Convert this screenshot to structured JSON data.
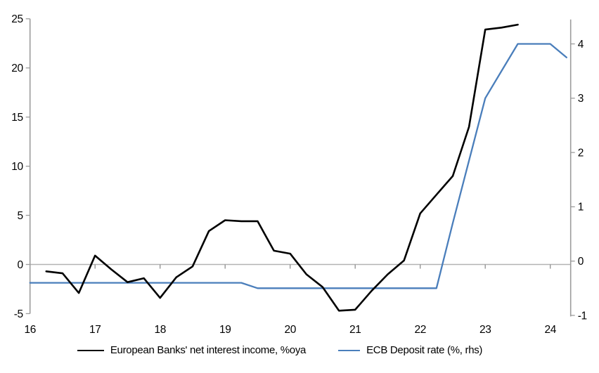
{
  "chart_data": {
    "type": "line",
    "title": "",
    "x_axis": {
      "ticks": [
        16,
        17,
        18,
        19,
        20,
        21,
        22,
        23,
        24
      ],
      "range": [
        16,
        24.45
      ],
      "tick_style": "on-zero-line, labels at bottom"
    },
    "left_axis": {
      "ticks": [
        25,
        20,
        15,
        10,
        5,
        0,
        -5
      ],
      "range": [
        -5,
        25
      ]
    },
    "right_axis": {
      "ticks": [
        4,
        3,
        2,
        1,
        0,
        -1
      ],
      "range": [
        -1.02,
        4.45
      ]
    },
    "gridlines": "zero-line-only",
    "legend_position": "bottom-center",
    "series": [
      {
        "name": "European Banks' net interest income, %oya",
        "axis": "left",
        "color": "#000000",
        "stroke_width": 2.6,
        "x": [
          16.25,
          16.5,
          16.75,
          17,
          17.25,
          17.5,
          17.75,
          18,
          18.25,
          18.5,
          18.75,
          19,
          19.25,
          19.5,
          19.75,
          20,
          20.25,
          20.5,
          20.75,
          21,
          21.25,
          21.5,
          21.75,
          22,
          22.25,
          22.5,
          22.75,
          23,
          23.25,
          23.5
        ],
        "values": [
          -0.7,
          -0.9,
          -2.9,
          0.9,
          -0.5,
          -1.8,
          -1.4,
          -3.4,
          -1.3,
          -0.2,
          3.4,
          4.5,
          4.4,
          4.4,
          1.4,
          1.1,
          -1.0,
          -2.3,
          -4.7,
          -4.6,
          -2.7,
          -1.0,
          0.4,
          5.2,
          7.1,
          9.0,
          14.0,
          23.9,
          24.1,
          24.4
        ]
      },
      {
        "name": "ECB Deposit rate (%, rhs)",
        "axis": "right",
        "color": "#4a7ebb",
        "stroke_width": 2.3,
        "x": [
          16,
          16.25,
          16.5,
          16.75,
          17,
          17.25,
          17.5,
          17.75,
          18,
          18.25,
          18.5,
          18.75,
          19,
          19.25,
          19.5,
          19.75,
          20,
          20.25,
          20.5,
          20.75,
          21,
          21.25,
          21.5,
          21.75,
          22,
          22.25,
          22.5,
          22.75,
          23,
          23.25,
          23.5,
          23.75,
          24,
          24.25
        ],
        "values": [
          -0.4,
          -0.4,
          -0.4,
          -0.4,
          -0.4,
          -0.4,
          -0.4,
          -0.4,
          -0.4,
          -0.4,
          -0.4,
          -0.4,
          -0.4,
          -0.4,
          -0.5,
          -0.5,
          -0.5,
          -0.5,
          -0.5,
          -0.5,
          -0.5,
          -0.5,
          -0.5,
          -0.5,
          -0.5,
          -0.5,
          0.7,
          1.85,
          3.0,
          3.5,
          4.0,
          4.0,
          4.0,
          3.75
        ]
      }
    ]
  }
}
